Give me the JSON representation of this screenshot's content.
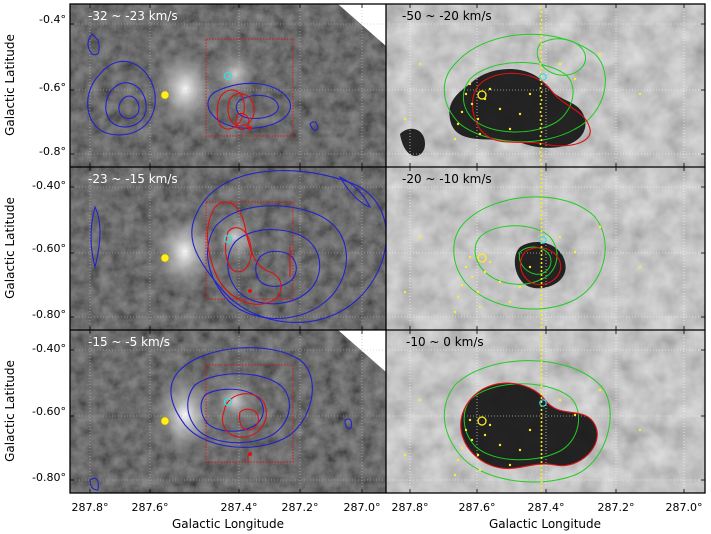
{
  "figure": {
    "xlabel": "Galactic Longitude",
    "ylabel": "Galactic Latitude",
    "x_ticks": [
      "287.8°",
      "287.6°",
      "287.4°",
      "287.2°",
      "287.0°"
    ],
    "y_ticks_row1": [
      "-0.4°",
      "-0.6°",
      "-0.8°"
    ],
    "y_ticks_row2": [
      "-0.40°",
      "-0.60°",
      "-0.80°"
    ],
    "y_ticks_row3": [
      "-0.40°",
      "-0.60°",
      "-0.80°"
    ],
    "panels": [
      {
        "velocity": "-32 ~ -23 km/s",
        "label_color": "#ffffff"
      },
      {
        "velocity": "-50 ~ -20 km/s",
        "label_color": "#000000"
      },
      {
        "velocity": "-23 ~ -15 km/s",
        "label_color": "#ffffff"
      },
      {
        "velocity": "-20 ~ -10 km/s",
        "label_color": "#000000"
      },
      {
        "velocity": "-15 ~ -5 km/s",
        "label_color": "#ffffff"
      },
      {
        "velocity": "-10 ~ 0 km/s",
        "label_color": "#000000"
      }
    ],
    "colors": {
      "left_contours": "#2222cc",
      "red_contours": "#dd1111",
      "green_contours": "#22cc22",
      "stars": "#ffee22",
      "cyan_marker": "#33dddd"
    }
  }
}
